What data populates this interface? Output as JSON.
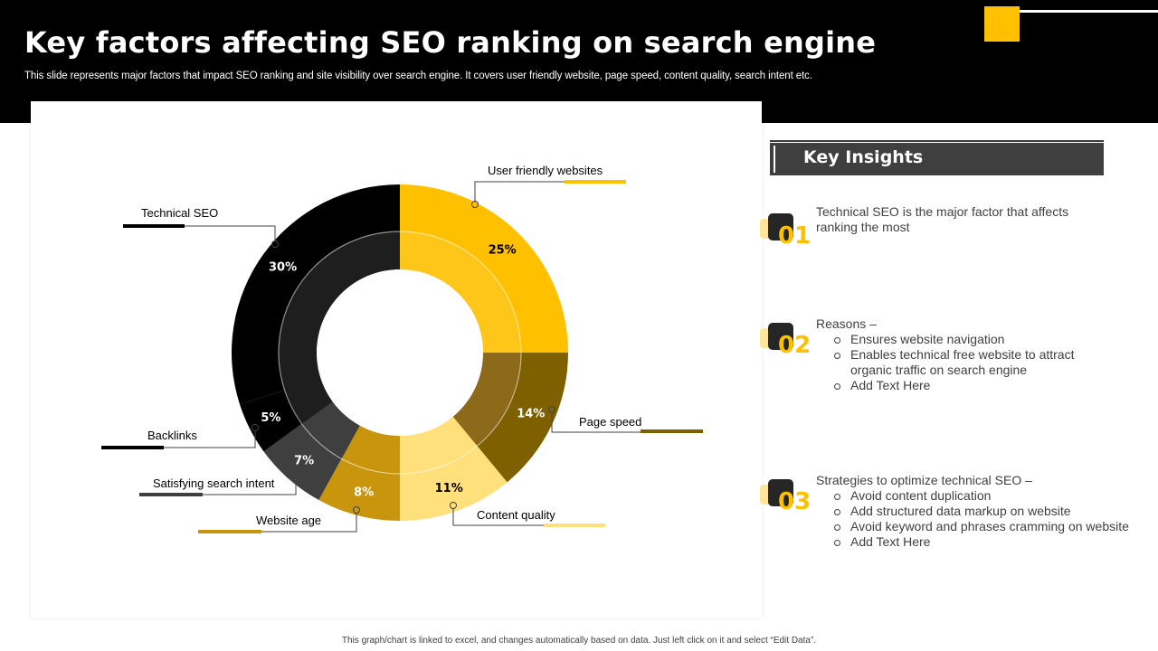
{
  "header": {
    "title": "Key factors affecting SEO ranking on search engine",
    "subtitle": "This slide represents major factors that impact SEO ranking and site visibility over search engine. It covers user friendly website, page speed, content quality, search intent etc."
  },
  "chart_data": {
    "type": "pie",
    "variant": "donut",
    "title": "",
    "categories": [
      "User friendly websites",
      "Page speed",
      "Content quality",
      "Website age",
      "Satisfying search intent",
      "Backlinks",
      "Technical SEO"
    ],
    "values": [
      25,
      14,
      11,
      8,
      7,
      5,
      30
    ],
    "value_labels": [
      "25%",
      "14%",
      "11%",
      "8%",
      "7%",
      "5%",
      "30%"
    ],
    "colors": [
      "#FFC000",
      "#7F6000",
      "#FFE07A",
      "#C9950C",
      "#3F3F3F",
      "#000000",
      "#000000"
    ],
    "inner_colors": [
      "#FFC61A",
      "#8C6A1A",
      "#FFE07A",
      "#C9950C",
      "#3F3F3F",
      "#1E1E1E",
      "#1E1E1E"
    ],
    "label_text_colors": [
      "#000000",
      "#ffffff",
      "#000000",
      "#ffffff",
      "#ffffff",
      "#ffffff",
      "#ffffff"
    ],
    "start_angle_deg": 0,
    "direction": "clockwise"
  },
  "insights": {
    "title": "Key Insights",
    "items": [
      {
        "number": "01",
        "intro": "Technical SEO is the major factor that affects ranking the most",
        "bullets": []
      },
      {
        "number": "02",
        "intro": "Reasons –",
        "bullets": [
          "Ensures website navigation",
          "Enables technical free website to attract organic traffic on search engine",
          "Add Text Here"
        ]
      },
      {
        "number": "03",
        "intro": "Strategies to optimize technical SEO –",
        "bullets": [
          "Avoid content duplication",
          "Add structured data markup on website",
          "Avoid keyword and phrases cramming on website",
          "Add Text Here"
        ]
      }
    ]
  },
  "footer": {
    "note": "This graph/chart is linked to excel, and changes automatically based on data. Just left click on it and select “Edit Data”."
  }
}
